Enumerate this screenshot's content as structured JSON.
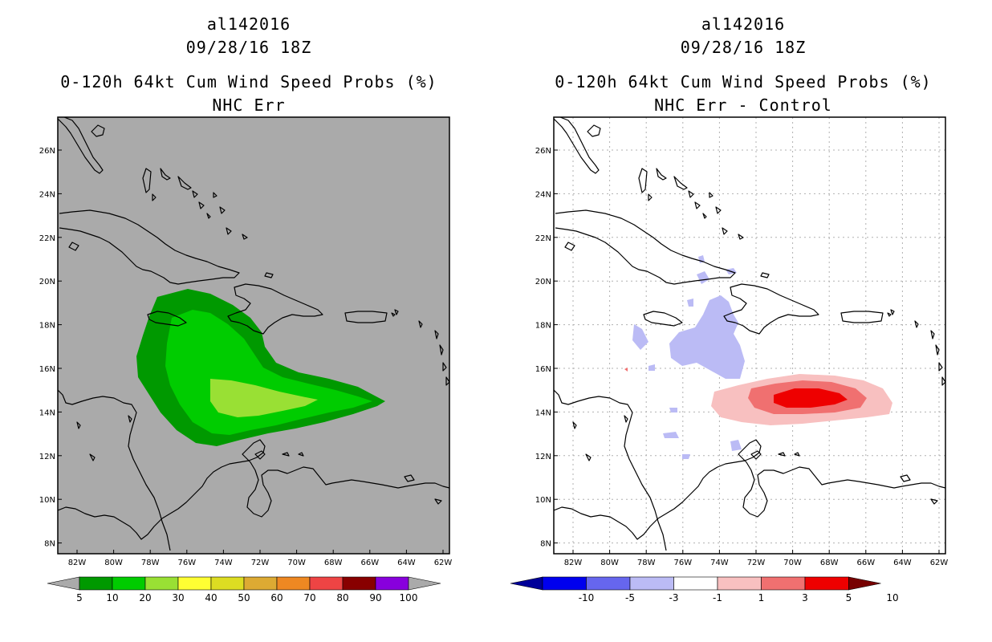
{
  "left_panel": {
    "storm_id": "al142016",
    "datetime": "09/28/16 18Z",
    "product": "0-120h 64kt Cum Wind Speed Probs (%)",
    "subtitle": "NHC Err",
    "lat_labels": [
      "26N",
      "24N",
      "22N",
      "20N",
      "18N",
      "16N",
      "14N",
      "12N",
      "10N",
      "8N"
    ],
    "lon_labels": [
      "82W",
      "80W",
      "78W",
      "76W",
      "74W",
      "72W",
      "70W",
      "68W",
      "66W",
      "64W",
      "62W"
    ],
    "colorbar": {
      "labels": [
        "5",
        "10",
        "20",
        "30",
        "40",
        "50",
        "60",
        "70",
        "80",
        "90",
        "100"
      ],
      "colors": [
        "#009900",
        "#00cc00",
        "#99e034",
        "#ffff33",
        "#dddd22",
        "#ddaa33",
        "#ee8822",
        "#ee4444",
        "#880000",
        "#8800dd"
      ],
      "under_color": "#aaaaaa",
      "over_color": "#aaaaaa"
    },
    "background_color": "#aaaaaa"
  },
  "right_panel": {
    "storm_id": "al142016",
    "datetime": "09/28/16 18Z",
    "product": "0-120h 64kt Cum Wind Speed Probs (%)",
    "subtitle": "NHC Err - Control",
    "lat_labels": [
      "26N",
      "24N",
      "22N",
      "20N",
      "18N",
      "16N",
      "14N",
      "12N",
      "10N",
      "8N"
    ],
    "lon_labels": [
      "82W",
      "80W",
      "78W",
      "76W",
      "74W",
      "72W",
      "70W",
      "68W",
      "66W",
      "64W",
      "62W"
    ],
    "colorbar": {
      "labels": [
        "-10",
        "-5",
        "-3",
        "-1",
        "1",
        "3",
        "5",
        "10"
      ],
      "colors": [
        "#0000ee",
        "#6666ee",
        "#bbbbf5",
        "#ffffff",
        "#f8c0c0",
        "#f07070",
        "#ee0000"
      ],
      "under_color": "#000099",
      "over_color": "#770000"
    },
    "background_color": "#ffffff"
  }
}
